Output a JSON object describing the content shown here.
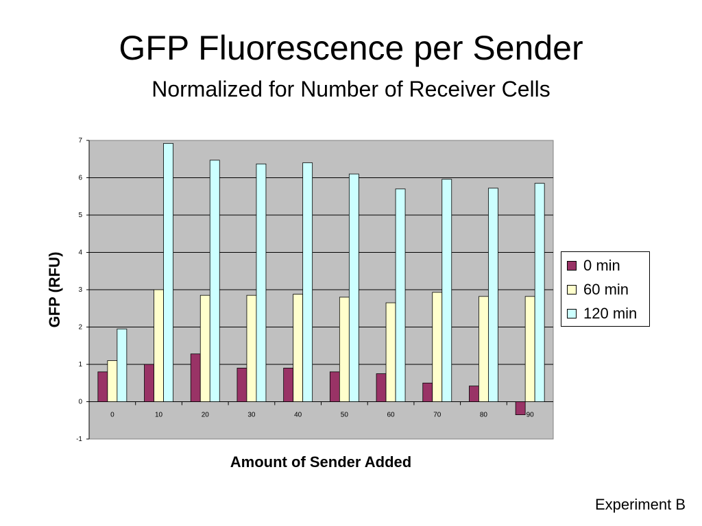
{
  "slide": {
    "title": "GFP Fluorescence per Sender",
    "subtitle": "Normalized for Number of Receiver Cells",
    "footnote": "Experiment B"
  },
  "chart_data": {
    "type": "bar",
    "title": "",
    "xlabel": "Amount of Sender Added",
    "ylabel": "GFP (RFU)",
    "categories": [
      "0",
      "10",
      "20",
      "30",
      "40",
      "50",
      "60",
      "70",
      "80",
      "90"
    ],
    "series": [
      {
        "name": "0 min",
        "color": "#993366",
        "values": [
          0.8,
          1.0,
          1.28,
          0.9,
          0.9,
          0.8,
          0.75,
          0.5,
          0.42,
          -0.35
        ]
      },
      {
        "name": "60 min",
        "color": "#ffffcc",
        "values": [
          1.1,
          3.0,
          2.85,
          2.85,
          2.88,
          2.8,
          2.65,
          2.93,
          2.82,
          2.82
        ]
      },
      {
        "name": "120 min",
        "color": "#ccffff",
        "values": [
          1.95,
          6.92,
          6.47,
          6.37,
          6.4,
          6.1,
          5.7,
          5.96,
          5.72,
          5.85
        ]
      }
    ],
    "ylim": [
      -1,
      7
    ],
    "yticks": [
      -1,
      0,
      1,
      2,
      3,
      4,
      5,
      6,
      7
    ],
    "grid": true,
    "plot_background": "#c0c0c0",
    "legend_position": "right"
  }
}
